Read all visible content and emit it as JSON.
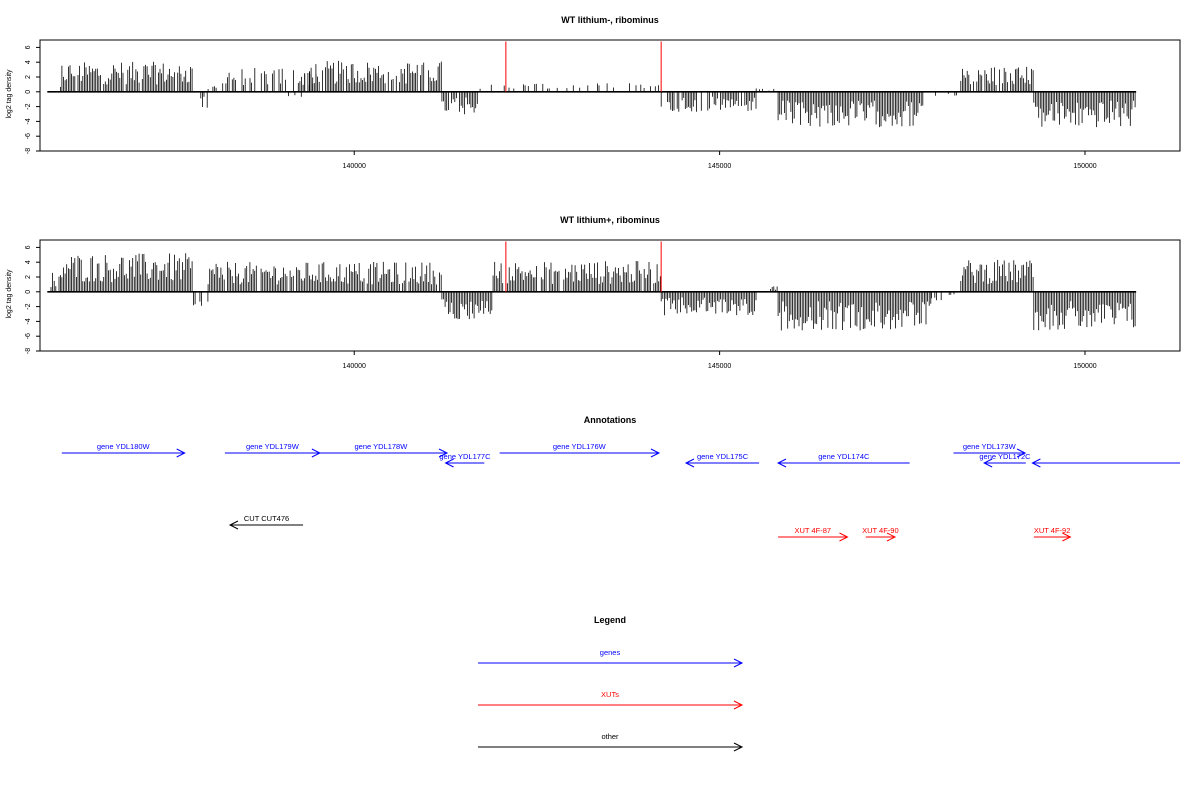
{
  "colors": {
    "genes": "#0000ff",
    "xuts": "#ff0000",
    "other": "#000000",
    "marker": "#ff0000",
    "density": "#000000"
  },
  "chart_data": [
    {
      "type": "bar",
      "title": "WT lithium-, ribominus",
      "ylabel": "log2 tag density",
      "xlim": [
        135700,
        151300
      ],
      "ylim": [
        -8,
        7
      ],
      "x_ticks": [
        140000,
        145000,
        150000
      ],
      "y_ticks": [
        -8,
        -6,
        -4,
        -2,
        0,
        2,
        4,
        6
      ],
      "markers": [
        142075,
        144200
      ],
      "x_range": [
        135800,
        150700
      ],
      "series": [
        {
          "segments": [
            {
              "start": 135850,
              "end": 136000,
              "mean": 0.5,
              "density": 0.3
            },
            {
              "start": 136000,
              "end": 137800,
              "mean": 2.8,
              "density": 0.9
            },
            {
              "start": 137900,
              "end": 138000,
              "mean": -1.5,
              "density": 0.6
            },
            {
              "start": 138000,
              "end": 138200,
              "mean": 0.6,
              "density": 0.4
            },
            {
              "start": 138200,
              "end": 139500,
              "mean": 2.3,
              "density": 0.6
            },
            {
              "start": 139100,
              "end": 139300,
              "mean": -1.2,
              "density": 0.5
            },
            {
              "start": 139300,
              "end": 141200,
              "mean": 2.9,
              "density": 0.85
            },
            {
              "start": 141200,
              "end": 141700,
              "mean": -2.2,
              "density": 0.9
            },
            {
              "start": 141700,
              "end": 144200,
              "mean": 0.8,
              "density": 0.3
            },
            {
              "start": 144200,
              "end": 145500,
              "mean": -1.9,
              "density": 0.7
            },
            {
              "start": 145500,
              "end": 145800,
              "mean": 0.4,
              "density": 0.2
            },
            {
              "start": 145800,
              "end": 147800,
              "mean": -3.3,
              "density": 1.0
            },
            {
              "start": 147800,
              "end": 148300,
              "mean": -0.5,
              "density": 0.3
            },
            {
              "start": 148300,
              "end": 149300,
              "mean": 2.4,
              "density": 0.8
            },
            {
              "start": 149300,
              "end": 150700,
              "mean": -3.4,
              "density": 1.0
            }
          ]
        }
      ]
    },
    {
      "type": "bar",
      "title": "WT lithium+, ribominus",
      "ylabel": "log2 tag density",
      "xlim": [
        135700,
        151300
      ],
      "ylim": [
        -8,
        7
      ],
      "x_ticks": [
        140000,
        145000,
        150000
      ],
      "y_ticks": [
        -8,
        -6,
        -4,
        -2,
        0,
        2,
        4,
        6
      ],
      "markers": [
        142075,
        144200
      ],
      "x_range": [
        135800,
        150700
      ],
      "series": [
        {
          "segments": [
            {
              "start": 135850,
              "end": 136000,
              "mean": 1.8,
              "density": 0.9
            },
            {
              "start": 136000,
              "end": 137800,
              "mean": 3.6,
              "density": 1.0
            },
            {
              "start": 137800,
              "end": 138000,
              "mean": -1.5,
              "density": 0.6
            },
            {
              "start": 138000,
              "end": 141200,
              "mean": 2.8,
              "density": 0.9
            },
            {
              "start": 141200,
              "end": 141900,
              "mean": -2.6,
              "density": 1.0
            },
            {
              "start": 141900,
              "end": 144200,
              "mean": 2.9,
              "density": 0.9
            },
            {
              "start": 144200,
              "end": 145500,
              "mean": -2.2,
              "density": 1.0
            },
            {
              "start": 145500,
              "end": 145800,
              "mean": 0.6,
              "density": 0.4
            },
            {
              "start": 145800,
              "end": 147900,
              "mean": -3.6,
              "density": 1.0
            },
            {
              "start": 147900,
              "end": 148300,
              "mean": -0.8,
              "density": 0.4
            },
            {
              "start": 148300,
              "end": 149300,
              "mean": 3.0,
              "density": 1.0
            },
            {
              "start": 149300,
              "end": 150700,
              "mean": -3.6,
              "density": 1.0
            }
          ]
        }
      ]
    }
  ],
  "annotations": {
    "title": "Annotations",
    "items": [
      {
        "label": "gene YDL180W",
        "start": 135998,
        "end": 137680,
        "kind": "gene",
        "row": 0
      },
      {
        "label": "gene YDL179W",
        "start": 138230,
        "end": 139530,
        "kind": "gene",
        "row": 0
      },
      {
        "label": "gene YDL178W",
        "start": 139460,
        "end": 141270,
        "kind": "gene",
        "row": 0
      },
      {
        "label": "gene YDL177C",
        "start": 141250,
        "end": 141780,
        "kind": "gene",
        "row": 1
      },
      {
        "label": "gene YDL176W",
        "start": 141990,
        "end": 144170,
        "kind": "gene",
        "row": 0
      },
      {
        "label": "gene YDL175C",
        "start": 144540,
        "end": 145540,
        "kind": "gene",
        "row": 1
      },
      {
        "label": "gene YDL174C",
        "start": 145800,
        "end": 147600,
        "kind": "gene",
        "row": 1
      },
      {
        "label": "gene YDL173W",
        "start": 148200,
        "end": 149180,
        "kind": "gene",
        "row": 0
      },
      {
        "label": "gene YDL172C",
        "start": 148620,
        "end": 149190,
        "kind": "gene",
        "row": 1
      },
      {
        "label": "",
        "start": 149280,
        "end": 151300,
        "kind": "gene",
        "row": 1
      },
      {
        "label": "CUT CUT476",
        "start": 138300,
        "end": 139300,
        "kind": "other",
        "row": 2
      },
      {
        "label": "XUT 4F-87",
        "start": 145800,
        "end": 146750,
        "kind": "xut",
        "row": 3
      },
      {
        "label": "XUT 4F-90",
        "start": 147000,
        "end": 147400,
        "kind": "xut",
        "row": 3
      },
      {
        "label": "XUT 4F-92",
        "start": 149300,
        "end": 149800,
        "kind": "xut",
        "row": 3
      }
    ]
  },
  "legend": {
    "title": "Legend",
    "items": [
      {
        "label": "genes",
        "kind": "gene"
      },
      {
        "label": "XUTs",
        "kind": "xut"
      },
      {
        "label": "other",
        "kind": "other"
      }
    ]
  }
}
